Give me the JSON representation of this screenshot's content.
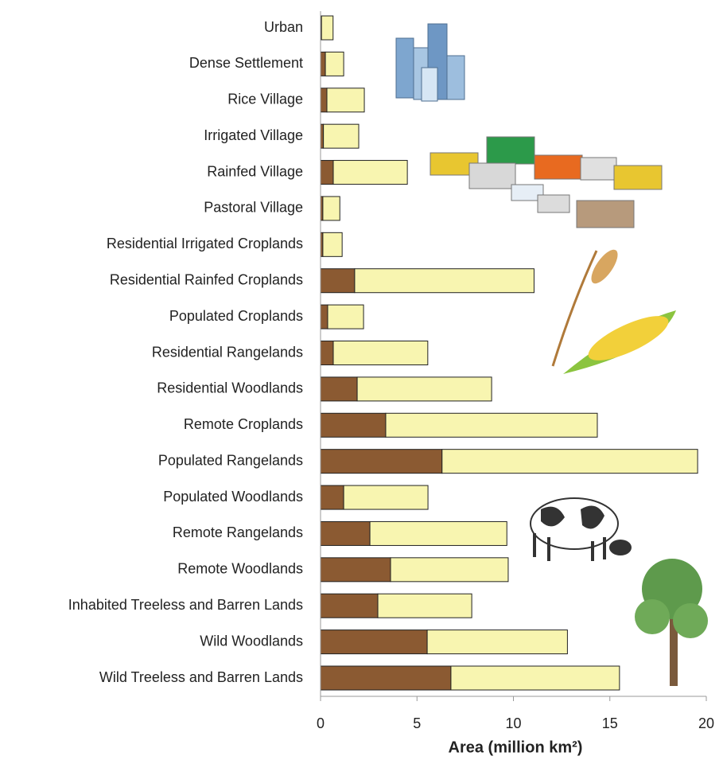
{
  "chart_data": {
    "type": "stacked_barh",
    "categories": [
      "Urban",
      "Dense Settlement",
      "Rice Village",
      "Irrigated Village",
      "Rainfed Village",
      "Pastoral Village",
      "Residential Irrigated Croplands",
      "Residential Rainfed Croplands",
      "Populated Croplands",
      "Residential Rangelands",
      "Residential Woodlands",
      "Remote Croplands",
      "Populated Rangelands",
      "Populated Woodlands",
      "Remote Rangelands",
      "Remote Woodlands",
      "Inhabited Treeless and Barren Lands",
      "Wild Woodlands",
      "Wild Treeless and Barren Lands"
    ],
    "series": [
      {
        "color": "#8b5a32",
        "values": [
          0.05,
          0.25,
          0.33,
          0.15,
          0.66,
          0.12,
          0.12,
          1.77,
          0.37,
          0.66,
          1.9,
          3.38,
          6.3,
          1.2,
          2.56,
          3.63,
          2.97,
          5.53,
          6.76
        ]
      },
      {
        "color": "#f8f5b0",
        "values": [
          0.6,
          0.95,
          1.94,
          1.83,
          3.84,
          0.88,
          1.0,
          9.3,
          1.86,
          4.9,
          6.97,
          10.97,
          13.25,
          4.37,
          7.1,
          6.1,
          4.87,
          7.27,
          8.74
        ]
      }
    ],
    "xlabel": "Area (million km²)",
    "xlim": [
      0,
      20
    ],
    "xticks": [
      0,
      5,
      10,
      15,
      20
    ]
  }
}
